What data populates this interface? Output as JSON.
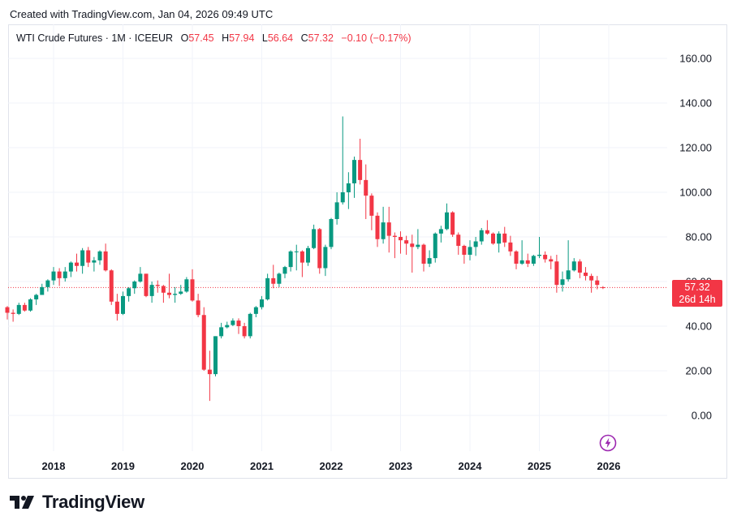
{
  "header": {
    "created_text": "Created with TradingView.com, Jan 04, 2026 09:49 UTC"
  },
  "legend": {
    "symbol": "WTI Crude Futures · 1M · ICEEUR",
    "o_label": "O",
    "o_value": "57.45",
    "h_label": "H",
    "h_value": "57.94",
    "l_label": "L",
    "l_value": "56.64",
    "c_label": "C",
    "c_value": "57.32",
    "change": "−0.10 (−0.17%)"
  },
  "price_tag": {
    "price": "57.32",
    "countdown": "26d 14h"
  },
  "brand": {
    "name": "TradingView"
  },
  "icons": {
    "event": "lightning-icon",
    "logo": "tradingview-logo-icon"
  },
  "colors": {
    "up": "#089981",
    "down": "#f23645",
    "last_price_line": "#f23645"
  },
  "chart_data": {
    "type": "candlestick",
    "yaxis": {
      "ticks": [
        "160.00",
        "140.00",
        "120.00",
        "100.00",
        "80.00",
        "60.00",
        "40.00",
        "20.00",
        "0.00"
      ],
      "ylim": [
        -10,
        165
      ]
    },
    "xaxis": {
      "ticks": [
        "2018",
        "2019",
        "2020",
        "2021",
        "2022",
        "2023",
        "2024",
        "2025",
        "2026"
      ]
    },
    "last_price": 57.32,
    "candles": [
      [
        "2017-05",
        48.5,
        49.0,
        43.0,
        46.0
      ],
      [
        "2017-06",
        46.0,
        47.5,
        42.0,
        45.5
      ],
      [
        "2017-07",
        45.5,
        50.5,
        45.0,
        49.5
      ],
      [
        "2017-08",
        49.5,
        50.5,
        46.5,
        47.0
      ],
      [
        "2017-09",
        47.0,
        52.5,
        46.5,
        52.0
      ],
      [
        "2017-10",
        52.0,
        54.5,
        49.5,
        54.0
      ],
      [
        "2017-11",
        54.0,
        59.0,
        54.0,
        57.5
      ],
      [
        "2017-12",
        57.5,
        61.0,
        55.5,
        60.5
      ],
      [
        "2018-01",
        60.5,
        66.5,
        58.5,
        64.5
      ],
      [
        "2018-02",
        64.5,
        66.0,
        58.0,
        61.5
      ],
      [
        "2018-03",
        61.5,
        66.5,
        60.0,
        64.5
      ],
      [
        "2018-04",
        64.5,
        69.0,
        62.0,
        68.5
      ],
      [
        "2018-05",
        68.5,
        72.5,
        64.5,
        67.0
      ],
      [
        "2018-06",
        67.0,
        75.0,
        63.5,
        74.0
      ],
      [
        "2018-07",
        74.0,
        75.5,
        66.5,
        68.5
      ],
      [
        "2018-08",
        68.5,
        71.0,
        64.5,
        69.5
      ],
      [
        "2018-09",
        69.5,
        74.0,
        67.5,
        73.5
      ],
      [
        "2018-10",
        73.5,
        77.0,
        64.5,
        65.0
      ],
      [
        "2018-11",
        65.0,
        65.5,
        49.5,
        51.0
      ],
      [
        "2018-12",
        51.0,
        54.5,
        42.5,
        45.5
      ],
      [
        "2019-01",
        45.5,
        55.5,
        45.0,
        53.5
      ],
      [
        "2019-02",
        53.5,
        57.5,
        51.0,
        57.0
      ],
      [
        "2019-03",
        57.0,
        60.5,
        54.5,
        60.0
      ],
      [
        "2019-04",
        60.0,
        66.5,
        59.5,
        63.5
      ],
      [
        "2019-05",
        63.5,
        63.5,
        53.0,
        53.5
      ],
      [
        "2019-06",
        53.5,
        60.0,
        50.5,
        58.5
      ],
      [
        "2019-07",
        58.5,
        60.5,
        55.0,
        58.0
      ],
      [
        "2019-08",
        58.0,
        58.5,
        50.5,
        55.0
      ],
      [
        "2019-09",
        55.0,
        63.5,
        52.5,
        54.0
      ],
      [
        "2019-10",
        54.0,
        57.5,
        50.5,
        54.5
      ],
      [
        "2019-11",
        54.5,
        58.5,
        54.0,
        55.5
      ],
      [
        "2019-12",
        55.5,
        62.0,
        55.0,
        61.0
      ],
      [
        "2020-01",
        61.0,
        65.5,
        51.0,
        51.5
      ],
      [
        "2020-02",
        51.5,
        54.5,
        44.0,
        45.0
      ],
      [
        "2020-03",
        45.0,
        48.5,
        20.0,
        20.5
      ],
      [
        "2020-04",
        20.5,
        29.0,
        6.5,
        18.5
      ],
      [
        "2020-05",
        18.5,
        35.5,
        17.5,
        35.5
      ],
      [
        "2020-06",
        35.5,
        41.5,
        34.5,
        39.5
      ],
      [
        "2020-07",
        39.5,
        42.0,
        39.0,
        40.5
      ],
      [
        "2020-08",
        40.5,
        43.5,
        40.0,
        42.5
      ],
      [
        "2020-09",
        42.5,
        43.5,
        36.5,
        40.0
      ],
      [
        "2020-10",
        40.0,
        41.5,
        34.5,
        35.5
      ],
      [
        "2020-11",
        35.5,
        46.0,
        34.5,
        45.5
      ],
      [
        "2020-12",
        45.5,
        49.0,
        44.0,
        48.5
      ],
      [
        "2021-01",
        48.5,
        53.5,
        47.5,
        52.0
      ],
      [
        "2021-02",
        52.0,
        63.5,
        51.5,
        61.5
      ],
      [
        "2021-03",
        61.5,
        67.5,
        57.0,
        59.0
      ],
      [
        "2021-04",
        59.0,
        64.0,
        57.5,
        63.5
      ],
      [
        "2021-05",
        63.5,
        67.0,
        61.5,
        66.5
      ],
      [
        "2021-06",
        66.5,
        74.0,
        64.5,
        73.5
      ],
      [
        "2021-07",
        73.5,
        76.5,
        65.0,
        73.5
      ],
      [
        "2021-08",
        73.5,
        74.0,
        62.0,
        68.5
      ],
      [
        "2021-09",
        68.5,
        76.0,
        67.0,
        75.0
      ],
      [
        "2021-10",
        75.0,
        85.5,
        74.5,
        83.5
      ],
      [
        "2021-11",
        83.5,
        84.0,
        63.5,
        66.0
      ],
      [
        "2021-12",
        66.0,
        76.5,
        62.5,
        75.5
      ],
      [
        "2022-01",
        75.5,
        88.5,
        74.5,
        88.0
      ],
      [
        "2022-02",
        88.0,
        100.0,
        85.5,
        95.5
      ],
      [
        "2022-03",
        95.5,
        134.0,
        94.5,
        100.0
      ],
      [
        "2022-04",
        100.0,
        109.0,
        92.5,
        104.0
      ],
      [
        "2022-05",
        104.0,
        116.0,
        97.5,
        114.5
      ],
      [
        "2022-06",
        114.5,
        124.0,
        103.5,
        105.5
      ],
      [
        "2022-07",
        105.5,
        112.5,
        88.0,
        98.5
      ],
      [
        "2022-08",
        98.5,
        99.5,
        83.0,
        89.5
      ],
      [
        "2022-09",
        89.5,
        91.0,
        75.5,
        79.0
      ],
      [
        "2022-10",
        79.0,
        93.5,
        77.0,
        86.5
      ],
      [
        "2022-11",
        86.5,
        93.5,
        73.0,
        80.5
      ],
      [
        "2022-12",
        80.5,
        82.0,
        70.5,
        80.0
      ],
      [
        "2023-01",
        80.0,
        82.5,
        72.5,
        78.5
      ],
      [
        "2023-02",
        78.5,
        80.5,
        72.0,
        77.0
      ],
      [
        "2023-03",
        77.0,
        81.0,
        64.0,
        75.5
      ],
      [
        "2023-04",
        75.5,
        83.5,
        74.5,
        76.5
      ],
      [
        "2023-05",
        76.5,
        77.0,
        64.5,
        68.0
      ],
      [
        "2023-06",
        68.0,
        74.0,
        66.5,
        70.5
      ],
      [
        "2023-07",
        70.5,
        82.0,
        68.5,
        81.5
      ],
      [
        "2023-08",
        81.5,
        85.0,
        77.5,
        83.5
      ],
      [
        "2023-09",
        83.5,
        95.0,
        83.0,
        91.0
      ],
      [
        "2023-10",
        91.0,
        91.5,
        80.0,
        81.0
      ],
      [
        "2023-11",
        81.0,
        82.0,
        72.0,
        76.0
      ],
      [
        "2023-12",
        76.0,
        76.5,
        68.0,
        72.0
      ],
      [
        "2024-01",
        72.0,
        78.5,
        69.5,
        75.5
      ],
      [
        "2024-02",
        75.5,
        80.0,
        71.5,
        78.0
      ],
      [
        "2024-03",
        78.0,
        84.0,
        76.5,
        83.0
      ],
      [
        "2024-04",
        83.0,
        87.5,
        81.0,
        81.5
      ],
      [
        "2024-05",
        81.5,
        82.0,
        76.5,
        77.0
      ],
      [
        "2024-06",
        77.0,
        82.5,
        73.0,
        81.5
      ],
      [
        "2024-07",
        81.5,
        84.5,
        75.5,
        77.5
      ],
      [
        "2024-08",
        77.5,
        80.5,
        71.5,
        73.5
      ],
      [
        "2024-09",
        73.5,
        74.0,
        65.5,
        68.0
      ],
      [
        "2024-10",
        68.0,
        78.5,
        67.5,
        69.5
      ],
      [
        "2024-11",
        69.5,
        72.5,
        66.5,
        68.0
      ],
      [
        "2024-12",
        68.0,
        72.0,
        67.0,
        71.5
      ],
      [
        "2025-01",
        71.5,
        80.0,
        70.5,
        72.0
      ],
      [
        "2025-02",
        72.0,
        73.5,
        68.5,
        70.0
      ],
      [
        "2025-03",
        70.0,
        71.5,
        65.5,
        69.0
      ],
      [
        "2025-04",
        69.0,
        72.0,
        55.0,
        58.5
      ],
      [
        "2025-05",
        58.5,
        64.5,
        55.5,
        61.0
      ],
      [
        "2025-06",
        61.0,
        78.5,
        60.0,
        65.0
      ],
      [
        "2025-07",
        65.0,
        70.5,
        64.5,
        69.0
      ],
      [
        "2025-08",
        69.0,
        70.0,
        61.5,
        64.0
      ],
      [
        "2025-09",
        64.0,
        66.5,
        60.5,
        62.5
      ],
      [
        "2025-10",
        62.5,
        63.5,
        55.0,
        60.5
      ],
      [
        "2025-11",
        60.5,
        62.5,
        56.5,
        58.5
      ],
      [
        "2025-12",
        57.45,
        57.94,
        56.64,
        57.32
      ]
    ]
  }
}
